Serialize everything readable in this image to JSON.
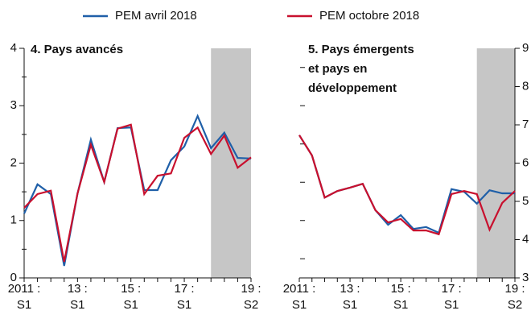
{
  "chart_data": [
    {
      "type": "line",
      "title": [
        "4. Pays avancés"
      ],
      "categories": [
        [
          "2011 :",
          "S1"
        ],
        null,
        null,
        null,
        [
          "13 :",
          "S1"
        ],
        null,
        null,
        null,
        [
          "15 :",
          "S1"
        ],
        null,
        null,
        null,
        [
          "17 :",
          "S1"
        ],
        null,
        null,
        null,
        null,
        [
          "19 :",
          "S2"
        ]
      ],
      "series": [
        {
          "name": "PEM avril 2018",
          "color": "#1f5fa8",
          "values": [
            1.12,
            1.63,
            1.46,
            0.21,
            1.47,
            2.41,
            1.67,
            2.61,
            2.62,
            1.53,
            1.53,
            2.05,
            2.29,
            2.82,
            2.26,
            2.53,
            2.09,
            2.08
          ]
        },
        {
          "name": "PEM octobre 2018",
          "color": "#c8102e",
          "values": [
            1.22,
            1.46,
            1.52,
            0.28,
            1.47,
            2.32,
            1.67,
            2.6,
            2.67,
            1.46,
            1.78,
            1.82,
            2.44,
            2.62,
            2.16,
            2.48,
            1.92,
            2.1
          ]
        }
      ],
      "ylim": [
        0,
        4
      ],
      "yticks": [
        0,
        1,
        2,
        3,
        4
      ],
      "minor_yticks": [
        0.5,
        1.5,
        2.5,
        3.5
      ],
      "axis_side": "left",
      "shade_from": 14
    },
    {
      "type": "line",
      "title": [
        "5. Pays émergents",
        "et pays en",
        "développement"
      ],
      "categories": [
        [
          "2011 :",
          "S1"
        ],
        null,
        null,
        null,
        [
          "13 :",
          "S1"
        ],
        null,
        null,
        null,
        [
          "15 :",
          "S1"
        ],
        null,
        null,
        null,
        [
          "17 :",
          "S1"
        ],
        null,
        null,
        null,
        null,
        [
          "19 :",
          "S2"
        ]
      ],
      "series": [
        {
          "color": "#1f5fa8",
          "values": [
            6.73,
            6.2,
            5.1,
            5.27,
            5.36,
            5.46,
            4.77,
            4.39,
            4.64,
            4.28,
            4.33,
            4.18,
            5.32,
            5.25,
            4.94,
            5.29,
            5.21,
            5.21
          ]
        },
        {
          "color": "#c8102e",
          "values": [
            6.73,
            6.2,
            5.1,
            5.27,
            5.36,
            5.46,
            4.77,
            4.45,
            4.54,
            4.24,
            4.24,
            4.14,
            5.19,
            5.27,
            5.19,
            4.26,
            4.96,
            5.27
          ]
        }
      ],
      "ylim": [
        3,
        9
      ],
      "yticks": [
        3,
        4,
        5,
        6,
        7,
        8,
        9
      ],
      "minor_yticks": [
        3.5,
        4.5,
        5.5,
        6.5,
        7.5,
        8.5
      ],
      "axis_side": "right",
      "shade_from": 14
    }
  ]
}
